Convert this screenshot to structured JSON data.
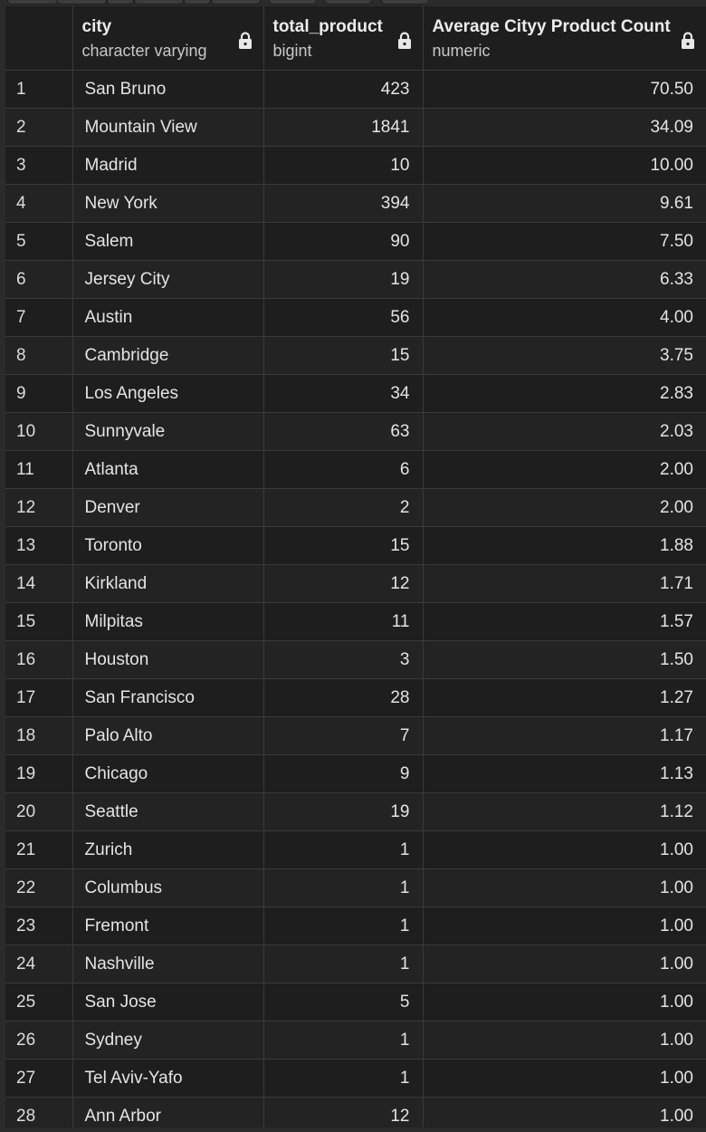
{
  "columns": {
    "city": {
      "name": "city",
      "type": "character varying"
    },
    "total_product": {
      "name": "total_product",
      "type": "bigint"
    },
    "avg": {
      "name": "Average Cityy Product Count",
      "type": "numeric"
    }
  },
  "rows": [
    {
      "n": "1",
      "city": "San Bruno",
      "total": "423",
      "avg": "70.50"
    },
    {
      "n": "2",
      "city": "Mountain View",
      "total": "1841",
      "avg": "34.09"
    },
    {
      "n": "3",
      "city": "Madrid",
      "total": "10",
      "avg": "10.00"
    },
    {
      "n": "4",
      "city": "New York",
      "total": "394",
      "avg": "9.61"
    },
    {
      "n": "5",
      "city": "Salem",
      "total": "90",
      "avg": "7.50"
    },
    {
      "n": "6",
      "city": "Jersey City",
      "total": "19",
      "avg": "6.33"
    },
    {
      "n": "7",
      "city": "Austin",
      "total": "56",
      "avg": "4.00"
    },
    {
      "n": "8",
      "city": "Cambridge",
      "total": "15",
      "avg": "3.75"
    },
    {
      "n": "9",
      "city": "Los Angeles",
      "total": "34",
      "avg": "2.83"
    },
    {
      "n": "10",
      "city": "Sunnyvale",
      "total": "63",
      "avg": "2.03"
    },
    {
      "n": "11",
      "city": "Atlanta",
      "total": "6",
      "avg": "2.00"
    },
    {
      "n": "12",
      "city": "Denver",
      "total": "2",
      "avg": "2.00"
    },
    {
      "n": "13",
      "city": "Toronto",
      "total": "15",
      "avg": "1.88"
    },
    {
      "n": "14",
      "city": "Kirkland",
      "total": "12",
      "avg": "1.71"
    },
    {
      "n": "15",
      "city": "Milpitas",
      "total": "11",
      "avg": "1.57"
    },
    {
      "n": "16",
      "city": "Houston",
      "total": "3",
      "avg": "1.50"
    },
    {
      "n": "17",
      "city": "San Francisco",
      "total": "28",
      "avg": "1.27"
    },
    {
      "n": "18",
      "city": "Palo Alto",
      "total": "7",
      "avg": "1.17"
    },
    {
      "n": "19",
      "city": "Chicago",
      "total": "9",
      "avg": "1.13"
    },
    {
      "n": "20",
      "city": "Seattle",
      "total": "19",
      "avg": "1.12"
    },
    {
      "n": "21",
      "city": "Zurich",
      "total": "1",
      "avg": "1.00"
    },
    {
      "n": "22",
      "city": "Columbus",
      "total": "1",
      "avg": "1.00"
    },
    {
      "n": "23",
      "city": "Fremont",
      "total": "1",
      "avg": "1.00"
    },
    {
      "n": "24",
      "city": "Nashville",
      "total": "1",
      "avg": "1.00"
    },
    {
      "n": "25",
      "city": "San Jose",
      "total": "5",
      "avg": "1.00"
    },
    {
      "n": "26",
      "city": "Sydney",
      "total": "1",
      "avg": "1.00"
    },
    {
      "n": "27",
      "city": "Tel Aviv-Yafo",
      "total": "1",
      "avg": "1.00"
    },
    {
      "n": "28",
      "city": "Ann Arbor",
      "total": "12",
      "avg": "1.00"
    }
  ],
  "icons": {
    "lock": "lock-icon"
  },
  "colors": {
    "background": "#1e1e1e",
    "grid_line": "#3a3a3a",
    "text": "#e4e4e4"
  }
}
